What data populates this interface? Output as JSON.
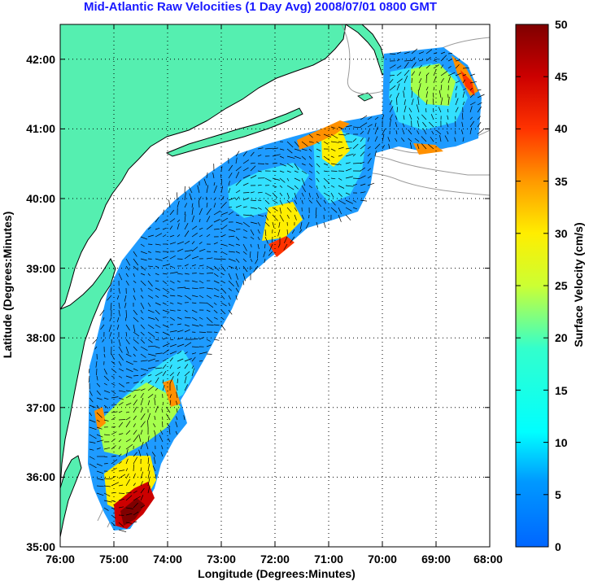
{
  "map": {
    "title": "Mid-Atlantic Raw Velocities (1 Day Avg) 2008/07/01 0800 GMT",
    "xlabel": "Longitude (Degrees:Minutes)",
    "ylabel": "Latitude (Degrees:Minutes)",
    "x_ticks": [
      "76:00",
      "75:00",
      "74:00",
      "73:00",
      "72:00",
      "71:00",
      "70:00",
      "69:00",
      "68:00"
    ],
    "y_ticks": [
      "35:00",
      "36:00",
      "37:00",
      "38:00",
      "39:00",
      "40:00",
      "41:00",
      "42:00"
    ],
    "colorbar": {
      "label": "Surface Velocity (cm/s)",
      "ticks": [
        "0",
        "5",
        "10",
        "15",
        "20",
        "25",
        "30",
        "35",
        "40",
        "45",
        "50"
      ],
      "range": [
        0,
        50
      ],
      "colormap": "jet"
    },
    "extent": {
      "lon": [
        -76,
        -68
      ],
      "lat": [
        35,
        42.5
      ]
    },
    "land_color": "#55efb0",
    "grid": "dotted"
  }
}
